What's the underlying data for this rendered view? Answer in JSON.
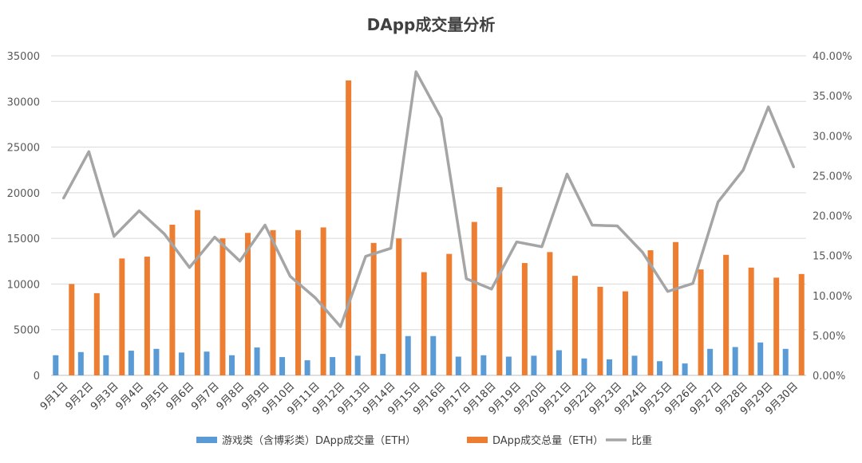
{
  "chart_data": {
    "type": "bar",
    "title": "DApp成交量分析",
    "categories": [
      "9月1日",
      "9月2日",
      "9月3日",
      "9月4日",
      "9月5日",
      "9月6日",
      "9月7日",
      "9月8日",
      "9月9日",
      "9月10日",
      "9月11日",
      "9月12日",
      "9月13日",
      "9月14日",
      "9月15日",
      "9月16日",
      "9月17日",
      "9月18日",
      "9月19日",
      "9月20日",
      "9月21日",
      "9月22日",
      "9月23日",
      "9月24日",
      "9月25日",
      "9月26日",
      "9月27日",
      "9月28日",
      "9月29日",
      "9月30日"
    ],
    "series": [
      {
        "name": "游戏类（含博彩类）DApp成交量（ETH）",
        "type": "bar",
        "axis": "left",
        "color": "#5b9bd5",
        "values": [
          2200,
          2550,
          2200,
          2700,
          2900,
          2500,
          2600,
          2200,
          3050,
          2000,
          1650,
          2000,
          2150,
          2350,
          4300,
          4300,
          2050,
          2200,
          2050,
          2150,
          2750,
          1850,
          1750,
          2150,
          1550,
          1300,
          2900,
          3100,
          3600,
          2900
        ]
      },
      {
        "name": "DApp成交总量（ETH）",
        "type": "bar",
        "axis": "left",
        "color": "#ed7d31",
        "values": [
          10000,
          9000,
          12800,
          13000,
          16500,
          18100,
          15000,
          15600,
          15900,
          15900,
          16200,
          32300,
          14500,
          15000,
          11300,
          13300,
          16800,
          20600,
          12300,
          13500,
          10900,
          9700,
          9200,
          13700,
          14600,
          11600,
          13200,
          11800,
          10700,
          11100
        ]
      },
      {
        "name": "比重",
        "type": "line",
        "axis": "right",
        "color": "#a5a5a5",
        "values": [
          0.222,
          0.28,
          0.174,
          0.206,
          0.177,
          0.135,
          0.173,
          0.143,
          0.188,
          0.124,
          0.097,
          0.061,
          0.149,
          0.159,
          0.38,
          0.322,
          0.121,
          0.108,
          0.167,
          0.161,
          0.252,
          0.188,
          0.187,
          0.154,
          0.105,
          0.115,
          0.217,
          0.257,
          0.336,
          0.261
        ]
      }
    ],
    "y_left": {
      "min": 0,
      "max": 35000,
      "ticks": [
        "0",
        "5000",
        "10000",
        "15000",
        "20000",
        "25000",
        "30000",
        "35000"
      ]
    },
    "y_right": {
      "min": 0,
      "max": 0.4,
      "ticks": [
        "0.00%",
        "5.00%",
        "10.00%",
        "15.00%",
        "20.00%",
        "25.00%",
        "30.00%",
        "35.00%",
        "40.00%"
      ]
    },
    "grid": true,
    "legend_position": "bottom",
    "xlabel": "",
    "ylabel": ""
  }
}
